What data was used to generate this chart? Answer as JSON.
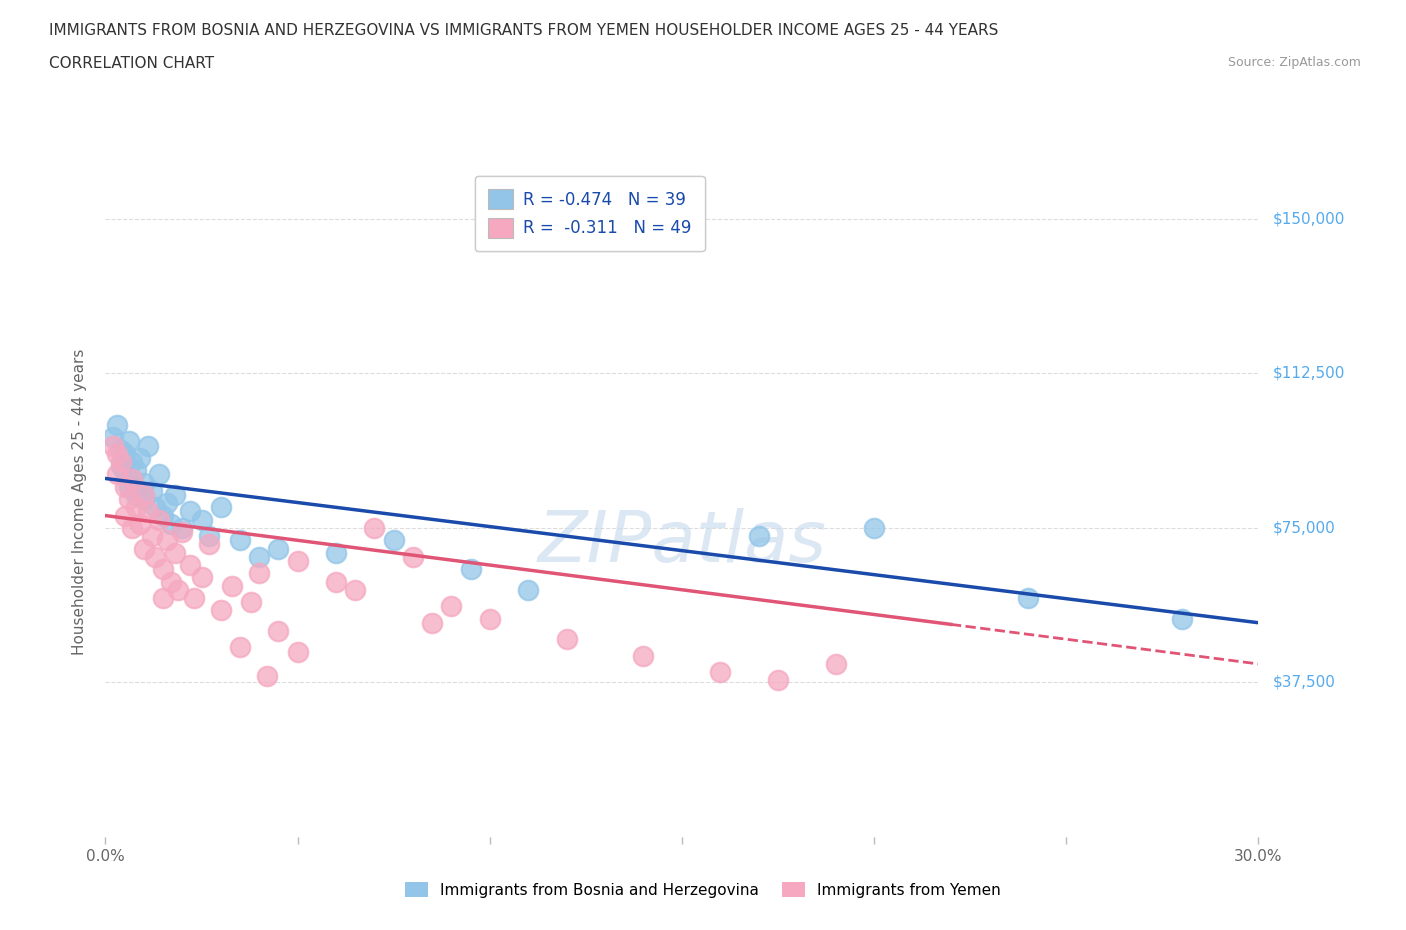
{
  "title_line1": "IMMIGRANTS FROM BOSNIA AND HERZEGOVINA VS IMMIGRANTS FROM YEMEN HOUSEHOLDER INCOME AGES 25 - 44 YEARS",
  "title_line2": "CORRELATION CHART",
  "source": "Source: ZipAtlas.com",
  "ylabel": "Householder Income Ages 25 - 44 years",
  "x_min": 0.0,
  "x_max": 0.3,
  "y_min": 0,
  "y_max": 162500,
  "y_ticks": [
    37500,
    75000,
    112500,
    150000
  ],
  "y_tick_labels": [
    "$37,500",
    "$75,000",
    "$112,500",
    "$150,000"
  ],
  "x_ticks": [
    0.0,
    0.05,
    0.1,
    0.15,
    0.2,
    0.25,
    0.3
  ],
  "x_tick_labels": [
    "0.0%",
    "",
    "",
    "",
    "",
    "",
    "30.0%"
  ],
  "bosnia_color": "#92C5E8",
  "yemen_color": "#F5A8C0",
  "bosnia_line_color": "#1A4AAA",
  "yemen_line_color": "#E05575",
  "bosnia_R": -0.474,
  "bosnia_N": 39,
  "yemen_R": -0.311,
  "yemen_N": 49,
  "bosnia_scatter_x": [
    0.002,
    0.003,
    0.004,
    0.004,
    0.005,
    0.005,
    0.006,
    0.006,
    0.007,
    0.007,
    0.008,
    0.008,
    0.009,
    0.01,
    0.01,
    0.011,
    0.012,
    0.013,
    0.014,
    0.015,
    0.016,
    0.017,
    0.018,
    0.02,
    0.022,
    0.025,
    0.027,
    0.03,
    0.035,
    0.04,
    0.045,
    0.06,
    0.075,
    0.095,
    0.11,
    0.17,
    0.2,
    0.24,
    0.28
  ],
  "bosnia_scatter_y": [
    97000,
    100000,
    94000,
    90000,
    93000,
    88000,
    96000,
    85000,
    91000,
    87000,
    89000,
    83000,
    92000,
    86000,
    82000,
    95000,
    84000,
    80000,
    88000,
    78000,
    81000,
    76000,
    83000,
    75000,
    79000,
    77000,
    73000,
    80000,
    72000,
    68000,
    70000,
    69000,
    72000,
    65000,
    60000,
    73000,
    75000,
    58000,
    53000
  ],
  "yemen_scatter_x": [
    0.002,
    0.003,
    0.004,
    0.005,
    0.005,
    0.006,
    0.007,
    0.007,
    0.008,
    0.009,
    0.01,
    0.01,
    0.011,
    0.012,
    0.013,
    0.014,
    0.015,
    0.016,
    0.017,
    0.018,
    0.019,
    0.02,
    0.022,
    0.023,
    0.025,
    0.027,
    0.03,
    0.033,
    0.038,
    0.04,
    0.045,
    0.05,
    0.06,
    0.07,
    0.08,
    0.09,
    0.1,
    0.12,
    0.14,
    0.16,
    0.175,
    0.19,
    0.05,
    0.065,
    0.085,
    0.035,
    0.042,
    0.003,
    0.015
  ],
  "yemen_scatter_y": [
    95000,
    88000,
    91000,
    85000,
    78000,
    82000,
    87000,
    75000,
    80000,
    76000,
    83000,
    70000,
    79000,
    73000,
    68000,
    77000,
    65000,
    72000,
    62000,
    69000,
    60000,
    74000,
    66000,
    58000,
    63000,
    71000,
    55000,
    61000,
    57000,
    64000,
    50000,
    67000,
    62000,
    75000,
    68000,
    56000,
    53000,
    48000,
    44000,
    40000,
    38000,
    42000,
    45000,
    60000,
    52000,
    46000,
    39000,
    93000,
    58000
  ],
  "watermark": "ZIPatlas",
  "background_color": "#FFFFFF",
  "grid_color": "#DDDDDD",
  "y_tick_color": "#55AAEE",
  "x_tick_color": "#666666",
  "axis_label_color": "#666666"
}
